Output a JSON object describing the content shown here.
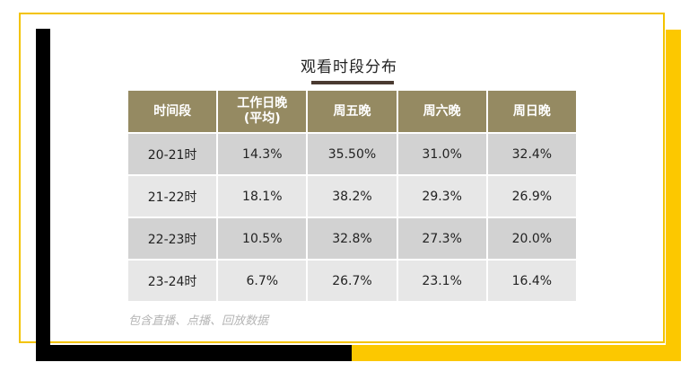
{
  "colors": {
    "frame_outline": "#f3c300",
    "accent_yellow": "#fcc800",
    "accent_black": "#000000",
    "header_bg": "#958a62",
    "row_dark": "#d2d2d2",
    "row_light": "#e7e7e7"
  },
  "title": "观看时段分布",
  "note": "包含直播、点播、回放数据",
  "chart_data": {
    "type": "table",
    "title": "观看时段分布",
    "columns": [
      "时间段",
      "工作日晚\n(平均)",
      "周五晚",
      "周六晚",
      "周日晚"
    ],
    "rows": [
      [
        "20-21时",
        "14.3%",
        "35.50%",
        "31.0%",
        "32.4%"
      ],
      [
        "21-22时",
        "18.1%",
        "38.2%",
        "29.3%",
        "26.9%"
      ],
      [
        "22-23时",
        "10.5%",
        "32.8%",
        "27.3%",
        "20.0%"
      ],
      [
        "23-24时",
        "6.7%",
        "26.7%",
        "23.1%",
        "16.4%"
      ]
    ]
  }
}
